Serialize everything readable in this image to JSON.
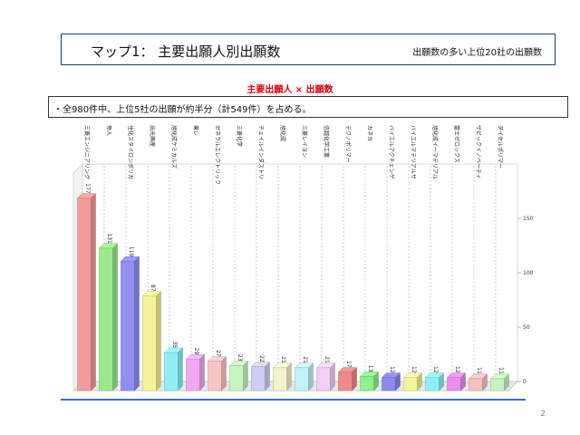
{
  "header": {
    "title": "マップ1： 主要出願人別出願数",
    "subtitle": "出願数の多い上位20社の出願数"
  },
  "note": "・全980件中、上位5社の出願が約半分（計549件）を占める。",
  "page_number": "2",
  "chart_data": {
    "type": "bar",
    "title": "主要出願人 × 出願数",
    "categories": [
      "三菱エンジニアリング",
      "帝人",
      "住化スタイロンポリカ",
      "出光興産",
      "旭化成ケミカルズ",
      "東レ",
      "ゼネラルエレクトリック",
      "三菱化学",
      "チェイルインダストリ",
      "旭化成",
      "三菱レイヨン",
      "信越化学工業",
      "テクノポリマー",
      "カネカ",
      "バイエルアクチェンゲ",
      "バイエルマテリアルサ",
      "旭化成イーマテリアル",
      "富士ゼロックス",
      "サビックイノベーティ",
      "ダイセルポリマー"
    ],
    "values": [
      177,
      131,
      119,
      87,
      35,
      29,
      27,
      23,
      22,
      21,
      21,
      21,
      17,
      13,
      12,
      12,
      12,
      12,
      11,
      11
    ],
    "value_labels": [
      "177",
      "131",
      "119",
      "87",
      "35",
      "29",
      "27",
      "23",
      "22",
      "21",
      "21",
      "21",
      "17",
      "13",
      "12",
      "12",
      "12",
      "12",
      "11",
      "11"
    ],
    "ylim": [
      0,
      200
    ],
    "yticks": [
      "0",
      "50",
      "100",
      "150"
    ],
    "colors": [
      "#f39b9b",
      "#9be98d",
      "#8f8ff2",
      "#f5f29a",
      "#8feef5",
      "#f2a8f0",
      "#f8c4c4",
      "#c6f5c0",
      "#cdcdf5",
      "#f3f2c8",
      "#c2f2f5",
      "#f5cdf5",
      "#ef8a8a",
      "#8ef08a",
      "#8a8aef",
      "#f3f39a",
      "#8eeef5",
      "#e88ef0",
      "#f5c0c0",
      "#c6f2c0"
    ],
    "grid": true,
    "legend": "none"
  }
}
